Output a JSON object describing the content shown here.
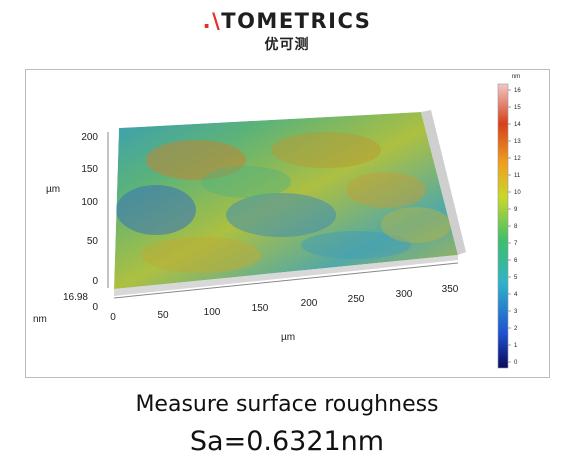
{
  "logo": {
    "brand_prefix": ".\\",
    "brand_rest": "TOMETRICS",
    "brand_cn": "优可测"
  },
  "plot": {
    "y_axis_label": "µm",
    "x_axis_label": "µm",
    "z_axis_label": "nm",
    "z_value": "16.98",
    "z_zero": "0",
    "y_ticks": [
      "200",
      "150",
      "100",
      "50",
      "0"
    ],
    "x_ticks": [
      "0",
      "50",
      "100",
      "150",
      "200",
      "250",
      "300",
      "350"
    ],
    "colorbar_unit": "nm",
    "colorbar_ticks": [
      "16",
      "15",
      "14",
      "13",
      "12",
      "11",
      "10",
      "9",
      "8",
      "7",
      "6",
      "5",
      "4",
      "3",
      "2",
      "1",
      "0"
    ],
    "colorbar_colors": [
      "#0a0a5a",
      "#1f4fcf",
      "#2fb3c9",
      "#3fbf6a",
      "#c8d82a",
      "#f0a020",
      "#d6401a",
      "#f2c7c7"
    ]
  },
  "caption": {
    "line1": "Measure surface roughness",
    "line2": "Sa=0.6321nm"
  }
}
